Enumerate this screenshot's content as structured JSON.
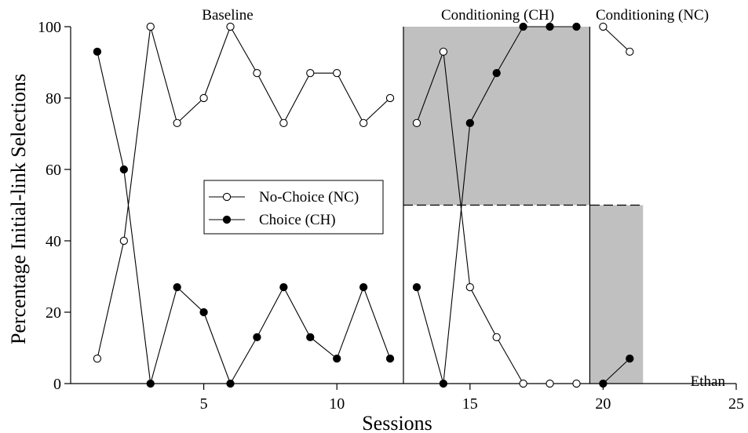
{
  "chart_data": {
    "type": "line",
    "xlabel": "Sessions",
    "ylabel": "Percentage Initial-link Selections",
    "xlim": [
      0,
      25
    ],
    "ylim": [
      0,
      100
    ],
    "xticks": [
      5,
      10,
      15,
      20,
      25
    ],
    "yticks": [
      0,
      20,
      40,
      60,
      80,
      100
    ],
    "grid": false,
    "legend_position": "center-left",
    "participant": "Ethan",
    "phases": [
      {
        "label": "Baseline"
      },
      {
        "label": "Conditioning (CH)"
      },
      {
        "label": "Conditioning (NC)"
      }
    ],
    "phase_change_lines_x": [
      12.5,
      19.5
    ],
    "shaded_regions": [
      {
        "x": [
          12.5,
          19.5
        ],
        "y": [
          50,
          100
        ]
      },
      {
        "x": [
          19.5,
          21.5
        ],
        "y": [
          0,
          50
        ]
      }
    ],
    "chance_line": {
      "y": 50,
      "x": [
        12.5,
        21.5
      ],
      "style": "dashed"
    },
    "series": [
      {
        "name": "No-Choice (NC)",
        "marker": "open-circle",
        "segments": [
          {
            "x": [
              1,
              2,
              3,
              4,
              5,
              6,
              7,
              8,
              9,
              10,
              11,
              12
            ],
            "y": [
              7,
              40,
              100,
              73,
              80,
              100,
              87,
              73,
              87,
              87,
              73,
              80
            ]
          },
          {
            "x": [
              13,
              14,
              15,
              16,
              17,
              18,
              19
            ],
            "y": [
              73,
              93,
              27,
              13,
              0,
              0,
              0
            ]
          },
          {
            "x": [
              20,
              21
            ],
            "y": [
              100,
              93
            ]
          }
        ]
      },
      {
        "name": "Choice (CH)",
        "marker": "filled-circle",
        "segments": [
          {
            "x": [
              1,
              2,
              3,
              4,
              5,
              6,
              7,
              8,
              9,
              10,
              11,
              12
            ],
            "y": [
              93,
              60,
              0,
              27,
              20,
              0,
              13,
              27,
              13,
              7,
              27,
              7
            ]
          },
          {
            "x": [
              13,
              14,
              15,
              16,
              17,
              18,
              19
            ],
            "y": [
              27,
              0,
              73,
              87,
              100,
              100,
              100
            ]
          },
          {
            "x": [
              20,
              21
            ],
            "y": [
              0,
              7
            ]
          }
        ]
      }
    ]
  }
}
